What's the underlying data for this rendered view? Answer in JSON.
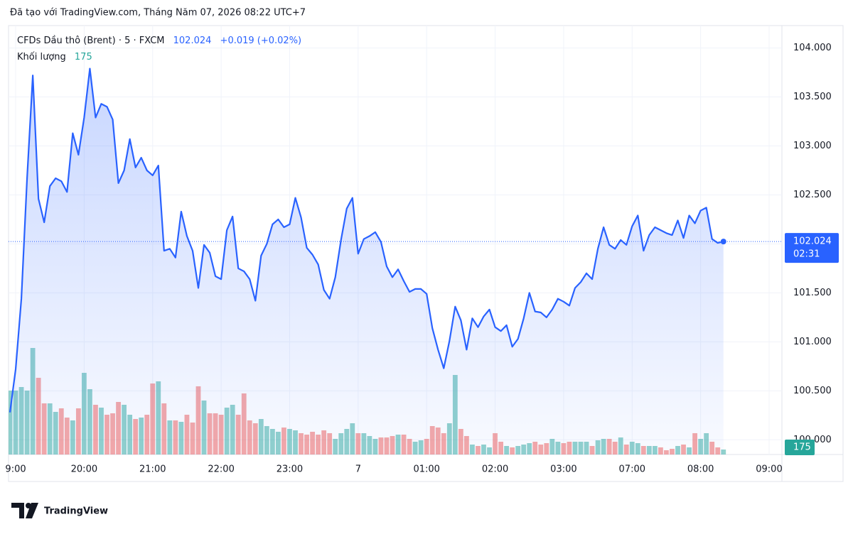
{
  "chart_data": {
    "type": "line",
    "title": "Đã tạo với TradingView.com, Tháng Năm 07, 2026 08:22 UTC+7",
    "change": "+0.019 (+0.02%)",
    "countdown": "02:31",
    "brand": "TradingView",
    "categories": [
      null,
      "9:00",
      null,
      null,
      null,
      null,
      null,
      null,
      null,
      null,
      null,
      null,
      null,
      "20:00",
      null,
      null,
      null,
      null,
      null,
      null,
      null,
      null,
      null,
      null,
      null,
      "21:00",
      null,
      null,
      null,
      null,
      null,
      null,
      null,
      null,
      null,
      null,
      null,
      "22:00",
      null,
      null,
      null,
      null,
      null,
      null,
      null,
      null,
      null,
      null,
      null,
      "23:00",
      null,
      null,
      null,
      null,
      null,
      null,
      null,
      null,
      null,
      null,
      null,
      "7",
      null,
      null,
      null,
      null,
      null,
      null,
      null,
      null,
      null,
      null,
      null,
      "01:00",
      null,
      null,
      null,
      null,
      null,
      null,
      null,
      null,
      null,
      null,
      null,
      "02:00",
      null,
      null,
      null,
      null,
      null,
      null,
      null,
      null,
      null,
      null,
      null,
      "03:00",
      null,
      null,
      null,
      null,
      null,
      null,
      null,
      null,
      null,
      null,
      null,
      "07:00",
      null,
      null,
      null,
      null,
      null,
      null,
      null,
      null,
      null,
      null,
      null,
      "08:00",
      null,
      null,
      null,
      null,
      null,
      null,
      null,
      null,
      null,
      null,
      null,
      "09:00"
    ],
    "series": [
      {
        "name": "CFDs Dầu thô (Brent) · 5 · FXCM",
        "color": "#2962ff",
        "values": [
          100.28,
          100.72,
          101.44,
          102.67,
          103.72,
          102.46,
          102.22,
          102.59,
          102.67,
          102.64,
          102.53,
          103.13,
          102.91,
          103.29,
          103.79,
          103.29,
          103.43,
          103.4,
          103.27,
          102.62,
          102.75,
          103.07,
          102.78,
          102.88,
          102.75,
          102.7,
          102.8,
          101.93,
          101.95,
          101.86,
          102.33,
          102.08,
          101.93,
          101.55,
          101.99,
          101.91,
          101.67,
          101.64,
          102.14,
          102.28,
          101.75,
          101.72,
          101.64,
          101.42,
          101.88,
          102.0,
          102.2,
          102.25,
          102.17,
          102.2,
          102.47,
          102.27,
          101.96,
          101.89,
          101.79,
          101.53,
          101.44,
          101.66,
          102.04,
          102.36,
          102.47,
          101.9,
          102.05,
          102.08,
          102.12,
          102.02,
          101.77,
          101.66,
          101.74,
          101.62,
          101.51,
          101.54,
          101.54,
          101.49,
          101.14,
          100.92,
          100.73,
          101.01,
          101.36,
          101.22,
          100.92,
          101.24,
          101.15,
          101.26,
          101.33,
          101.15,
          101.11,
          101.17,
          100.95,
          101.03,
          101.24,
          101.5,
          101.31,
          101.3,
          101.25,
          101.33,
          101.44,
          101.41,
          101.37,
          101.55,
          101.61,
          101.7,
          101.64,
          101.95,
          102.17,
          101.99,
          101.95,
          102.04,
          101.99,
          102.18,
          102.29,
          101.93,
          102.09,
          102.17,
          102.14,
          102.11,
          102.09,
          102.24,
          102.06,
          102.29,
          102.21,
          102.34,
          102.37,
          102.05,
          102.01,
          102.024,
          null,
          null,
          null,
          null,
          null,
          null,
          null,
          null
        ]
      },
      {
        "name": "Khối lượng",
        "axis": "y2",
        "color": "#26a69a",
        "down_color": "#ef5350",
        "values": [
          2250,
          2250,
          2375,
          2250,
          3750,
          2700,
          1800,
          1800,
          1500,
          1625,
          1300,
          1200,
          1625,
          2875,
          2300,
          1750,
          1650,
          1400,
          1450,
          1850,
          1750,
          1400,
          1250,
          1300,
          1400,
          2500,
          2575,
          1800,
          1200,
          1200,
          1150,
          1400,
          1125,
          2400,
          1900,
          1450,
          1450,
          1400,
          1650,
          1750,
          1400,
          2150,
          1200,
          1100,
          1250,
          1000,
          900,
          800,
          950,
          900,
          850,
          750,
          700,
          800,
          700,
          850,
          750,
          550,
          750,
          900,
          1100,
          750,
          750,
          650,
          550,
          600,
          600,
          650,
          700,
          700,
          550,
          450,
          500,
          550,
          1000,
          950,
          750,
          1100,
          2800,
          900,
          650,
          350,
          300,
          350,
          250,
          750,
          450,
          300,
          250,
          300,
          350,
          400,
          450,
          350,
          400,
          550,
          450,
          400,
          450,
          450,
          450,
          450,
          300,
          500,
          550,
          550,
          450,
          600,
          350,
          450,
          400,
          300,
          300,
          300,
          250,
          150,
          200,
          300,
          350,
          250,
          750,
          550,
          750,
          450,
          250,
          175,
          null,
          null,
          null,
          null,
          null,
          null,
          null,
          null
        ]
      }
    ],
    "ylim": [
      99.85,
      104.2
    ],
    "yticks": [
      {
        "value": 100,
        "label": "100.000"
      },
      {
        "value": 100.5,
        "label": "100.500"
      },
      {
        "value": 101,
        "label": "101.000"
      },
      {
        "value": 101.5,
        "label": "101.500"
      },
      {
        "value": 102,
        "label": "102.000"
      },
      {
        "value": 102.5,
        "label": "102.500"
      },
      {
        "value": 103,
        "label": "103.000"
      },
      {
        "value": 103.5,
        "label": "103.500"
      },
      {
        "value": 104,
        "label": "104.000"
      }
    ],
    "y2lim": [
      0,
      15000
    ],
    "grid": true,
    "area": true
  }
}
